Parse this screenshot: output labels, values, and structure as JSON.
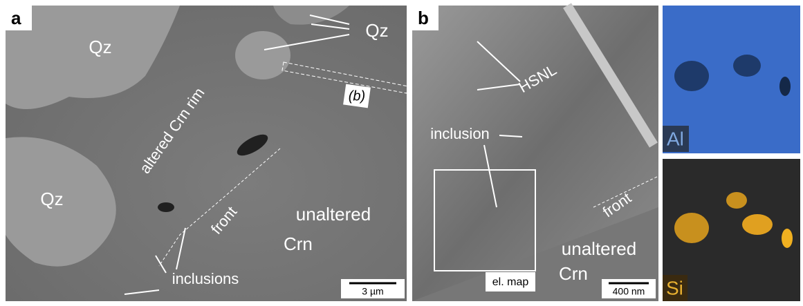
{
  "panel_a": {
    "label": "a",
    "annotations": [
      "Qz",
      "Qz",
      "Qz",
      "altered Crn rim",
      "(b)",
      "front",
      "unaltered",
      "Crn",
      "inclusions"
    ],
    "scale_bar": "3 µm"
  },
  "panel_b": {
    "label": "b",
    "annotations": [
      "HSNL",
      "inclusion",
      "front",
      "unaltered",
      "Crn",
      "el. map"
    ],
    "scale_bar": "400 nm"
  },
  "maps": {
    "al_label": "Al",
    "si_label": "Si"
  }
}
